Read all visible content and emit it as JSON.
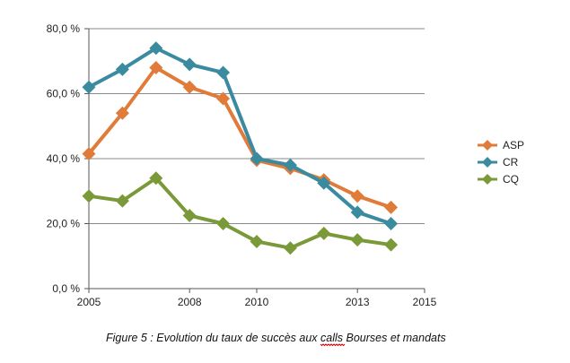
{
  "chart_data": {
    "type": "line",
    "title": "",
    "xlabel": "",
    "ylabel": "",
    "xlim": [
      2005,
      2015
    ],
    "ylim": [
      0,
      80
    ],
    "x_ticks": [
      "2005",
      "2008",
      "2010",
      "2013",
      "2015"
    ],
    "y_ticks": [
      "0,0 %",
      "20,0 %",
      "40,0 %",
      "60,0 %",
      "80,0 %"
    ],
    "grid": "horizontal",
    "legend_position": "right",
    "x": [
      2005,
      2006,
      2007,
      2008,
      2009,
      2010,
      2011,
      2012,
      2013,
      2014
    ],
    "series": [
      {
        "name": "ASP",
        "color": "#e07b39",
        "marker": "diamond",
        "values": [
          41.5,
          54.0,
          68.0,
          62.0,
          58.5,
          39.5,
          37.0,
          33.5,
          28.5,
          25.0
        ]
      },
      {
        "name": "CR",
        "color": "#3a8ba0",
        "marker": "diamond",
        "values": [
          62.0,
          67.5,
          74.0,
          69.0,
          66.5,
          40.0,
          38.0,
          32.5,
          23.5,
          20.0
        ]
      },
      {
        "name": "CQ",
        "color": "#7a9a3a",
        "marker": "diamond",
        "values": [
          28.5,
          27.0,
          34.0,
          22.5,
          20.0,
          14.5,
          12.5,
          17.0,
          15.0,
          13.5
        ]
      }
    ]
  },
  "caption": {
    "prefix": "Figure 5 : Evolution du taux de succès aux ",
    "underlined": "calls",
    "suffix": " Bourses et mandats"
  }
}
